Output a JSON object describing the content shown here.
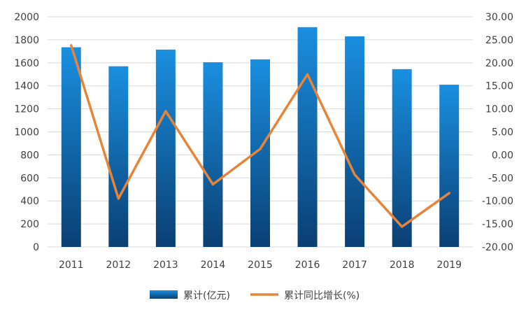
{
  "chart_data": {
    "type": "bar",
    "categories": [
      "2011",
      "2012",
      "2013",
      "2014",
      "2015",
      "2016",
      "2017",
      "2018",
      "2019"
    ],
    "series": [
      {
        "name": "累计(亿元)",
        "type": "bar",
        "axis": "left",
        "values": [
          1735,
          1570,
          1715,
          1605,
          1630,
          1910,
          1830,
          1545,
          1410
        ]
      },
      {
        "name": "累计同比增长(%)",
        "type": "line",
        "axis": "right",
        "values": [
          23.8,
          -9.5,
          9.5,
          -6.4,
          1.3,
          17.5,
          -4.3,
          -15.6,
          -8.3
        ]
      }
    ],
    "left_axis": {
      "ylim": [
        0,
        2000
      ],
      "ticks": [
        "0",
        "200",
        "400",
        "600",
        "800",
        "1000",
        "1200",
        "1400",
        "1600",
        "1800",
        "2000"
      ]
    },
    "right_axis": {
      "ylim": [
        -20,
        30
      ],
      "ticks": [
        "-20.00",
        "-15.00",
        "-10.00",
        "-5.00",
        "0.00",
        "5.00",
        "10.00",
        "15.00",
        "20.00",
        "25.00",
        "30.00"
      ]
    },
    "grid": true,
    "legend": "bottom",
    "colors": {
      "bar_top": "#1a8fe0",
      "bar_bottom": "#0a3f73",
      "line": "#e6843a",
      "grid": "#d9d9d9"
    }
  }
}
